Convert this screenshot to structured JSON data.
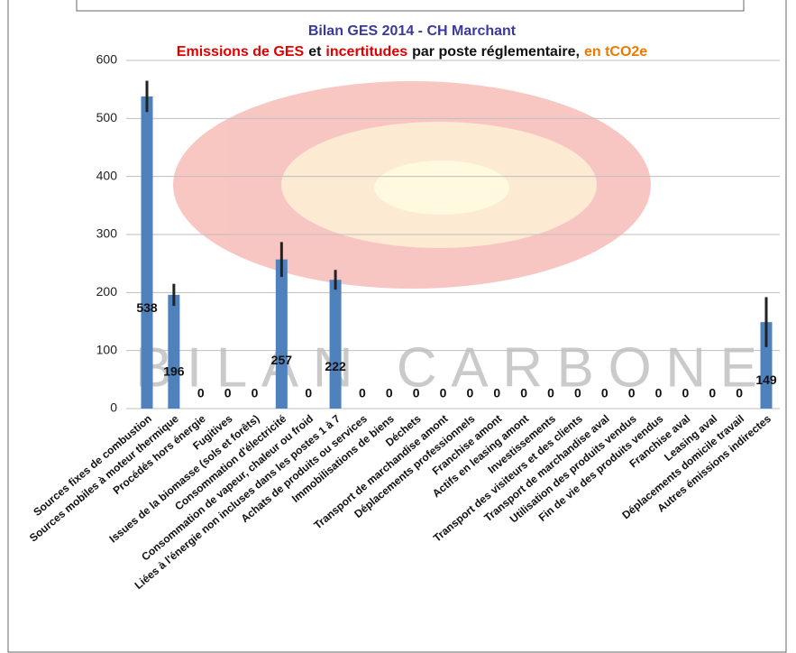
{
  "chart_data": {
    "type": "bar",
    "title": "Bilan GES 2014 - CH Marchant",
    "subtitle": [
      {
        "text": "Emissions de GES",
        "color": "#e00000"
      },
      {
        "text": "et",
        "color": "#111111"
      },
      {
        "text": "incertitudes",
        "color": "#e00000"
      },
      {
        "text": "par poste réglementaire,",
        "color": "#111111"
      },
      {
        "text": "en tCO2e",
        "color": "#f07800"
      }
    ],
    "watermark": "BILAN CARBONE",
    "categories": [
      "Sources fixes de combustion",
      "Sources mobiles à moteur thermique",
      "Procédés hors énergie",
      "Fugitives",
      "Issues de la biomasse (sols et forêts)",
      "Consommation d'électricité",
      "Consommation de vapeur, chaleur ou froid",
      "Liées à l'énergie non incluses dans les postes 1 à 7",
      "Achats de produits ou services",
      "Immobilisations de biens",
      "Déchets",
      "Transport de marchandise amont",
      "Déplacements professionnels",
      "Franchise amont",
      "Actifs en leasing amont",
      "Investissements",
      "Transport des visiteurs et des clients",
      "Transport de marchandise aval",
      "Utilisation des produits vendus",
      "Fin de vie des produits vendus",
      "Franchise aval",
      "Leasing aval",
      "Déplacements domicile travail",
      "Autres émissions indirectes"
    ],
    "values": [
      538,
      196,
      0,
      0,
      0,
      257,
      0,
      222,
      0,
      0,
      0,
      0,
      0,
      0,
      0,
      0,
      0,
      0,
      0,
      0,
      0,
      0,
      0,
      149
    ],
    "errors": [
      27,
      19,
      0,
      0,
      0,
      30,
      0,
      17,
      0,
      0,
      0,
      0,
      0,
      0,
      0,
      0,
      0,
      0,
      0,
      0,
      0,
      0,
      0,
      43
    ],
    "color": "#4f81bd",
    "error_color": "#222222",
    "ylim": [
      0,
      600
    ],
    "yticks": [
      0,
      100,
      200,
      300,
      400,
      500,
      600
    ],
    "grid": true
  }
}
